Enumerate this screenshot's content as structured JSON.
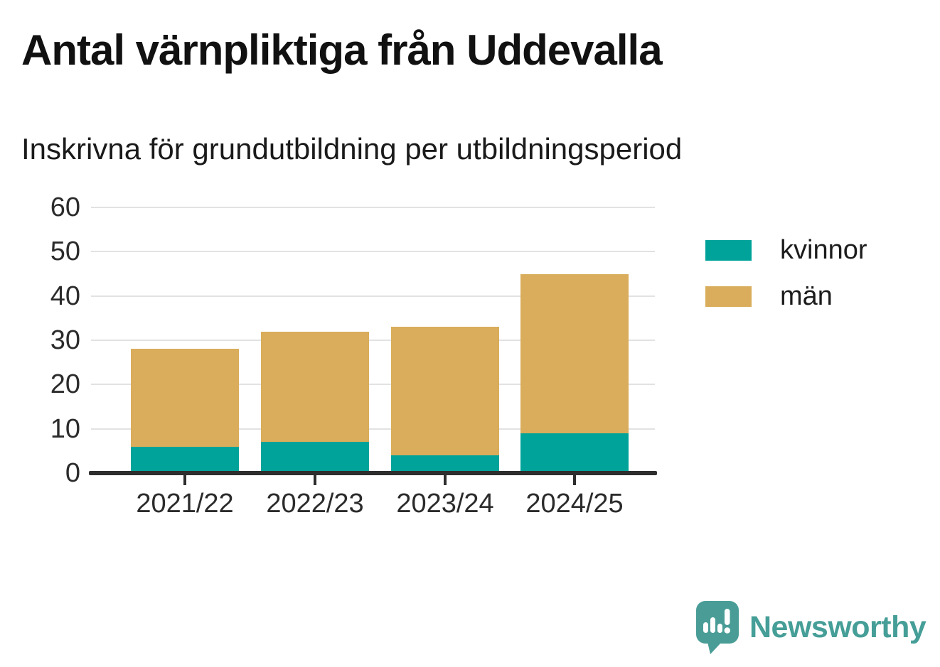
{
  "header": {
    "title": "Antal värnpliktiga från Uddevalla",
    "subtitle": "Inskrivna för grundutbildning per utbildningsperiod"
  },
  "chart_data": {
    "type": "bar",
    "stacked": true,
    "title": "Antal värnpliktiga från Uddevalla",
    "subtitle": "Inskrivna för grundutbildning per utbildningsperiod",
    "categories": [
      "2021/22",
      "2022/23",
      "2023/24",
      "2024/25"
    ],
    "series": [
      {
        "name": "kvinnor",
        "color": "#00a39a",
        "values": [
          6,
          7,
          4,
          9
        ]
      },
      {
        "name": "män",
        "color": "#d9ad5b",
        "values": [
          22,
          25,
          29,
          36
        ]
      }
    ],
    "stack_totals": [
      28,
      32,
      33,
      45
    ],
    "ylim": [
      0,
      60
    ],
    "yticks": [
      0,
      10,
      20,
      30,
      40,
      50,
      60
    ],
    "grid": "horizontal",
    "legend_position": "right",
    "colors": {
      "gridline": "#e2e2e2",
      "axis": "#2e2e2e",
      "tick_label": "#2b2b2b",
      "title": "#111111"
    }
  },
  "footer": {
    "brand": "Newsworthy",
    "brand_color": "#459e97"
  }
}
